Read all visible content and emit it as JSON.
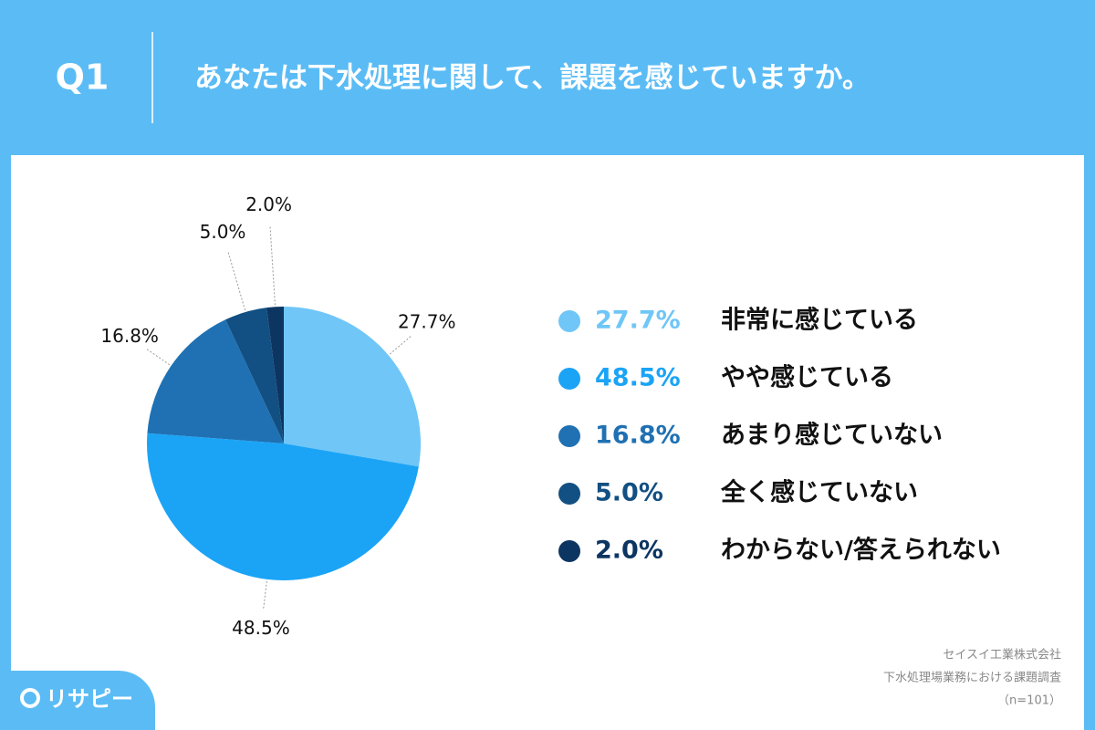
{
  "header": {
    "number": "Q1"
  },
  "chart_data": {
    "type": "pie",
    "title": "あなたは下水処理に関して、課題を感じていますか。",
    "categories": [
      "非常に感じている",
      "やや感じている",
      "あまり感じていない",
      "全く感じていない",
      "わからない/答えられない"
    ],
    "values": [
      27.7,
      48.5,
      16.8,
      5.0,
      2.0
    ],
    "value_labels": [
      "27.7%",
      "48.5%",
      "16.8%",
      "5.0%",
      "2.0%"
    ],
    "colors": [
      "#6fc6f7",
      "#1ba4f6",
      "#1f71b3",
      "#124f82",
      "#0d3562"
    ],
    "legend": "right"
  },
  "source": [
    "セイスイ工業株式会社",
    "下水処理場業務における課題調査",
    "（n=101）"
  ],
  "logo": "リサピー"
}
